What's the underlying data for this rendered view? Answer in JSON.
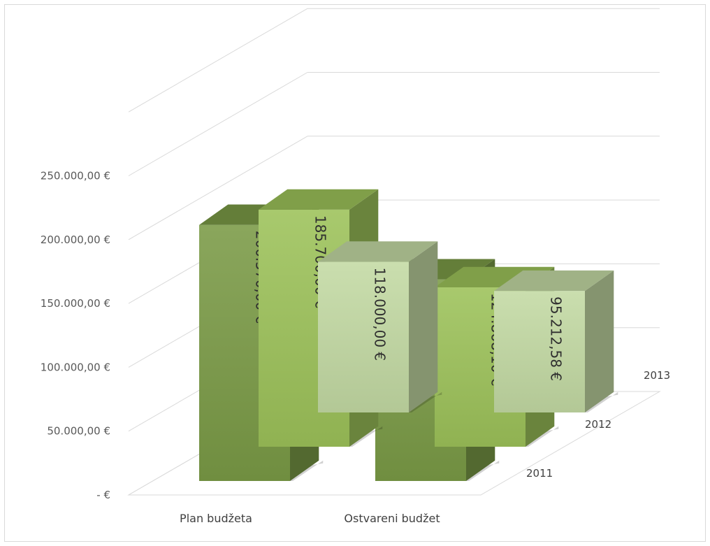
{
  "chart_data": {
    "type": "bar",
    "subtype": "3d-column",
    "title": "",
    "xlabel": "",
    "ylabel": "",
    "categories": [
      "Plan budžeta",
      "Ostvareni budžet"
    ],
    "y_tick_labels": [
      "-  €",
      "50.000,00 €",
      "100.000,00 €",
      "150.000,00 €",
      "200.000,00 €",
      "250.000,00 €"
    ],
    "ylim": [
      0,
      250000
    ],
    "grid": true,
    "series": [
      {
        "name": "2011",
        "color": "#7a9a46",
        "values": [
          200570.0,
          157868.06
        ],
        "labels": [
          "200.570,00 €",
          "157.868,06 €"
        ]
      },
      {
        "name": "2012",
        "color": "#9cc259",
        "values": [
          185700.0,
          124868.1
        ],
        "labels": [
          "185.700,00 €",
          "124.868,10 €"
        ]
      },
      {
        "name": "2013",
        "color": "#c3d9a3",
        "values": [
          118000.0,
          95212.58
        ],
        "labels": [
          "118.000,00 €",
          "95.212,58 €"
        ]
      }
    ]
  }
}
